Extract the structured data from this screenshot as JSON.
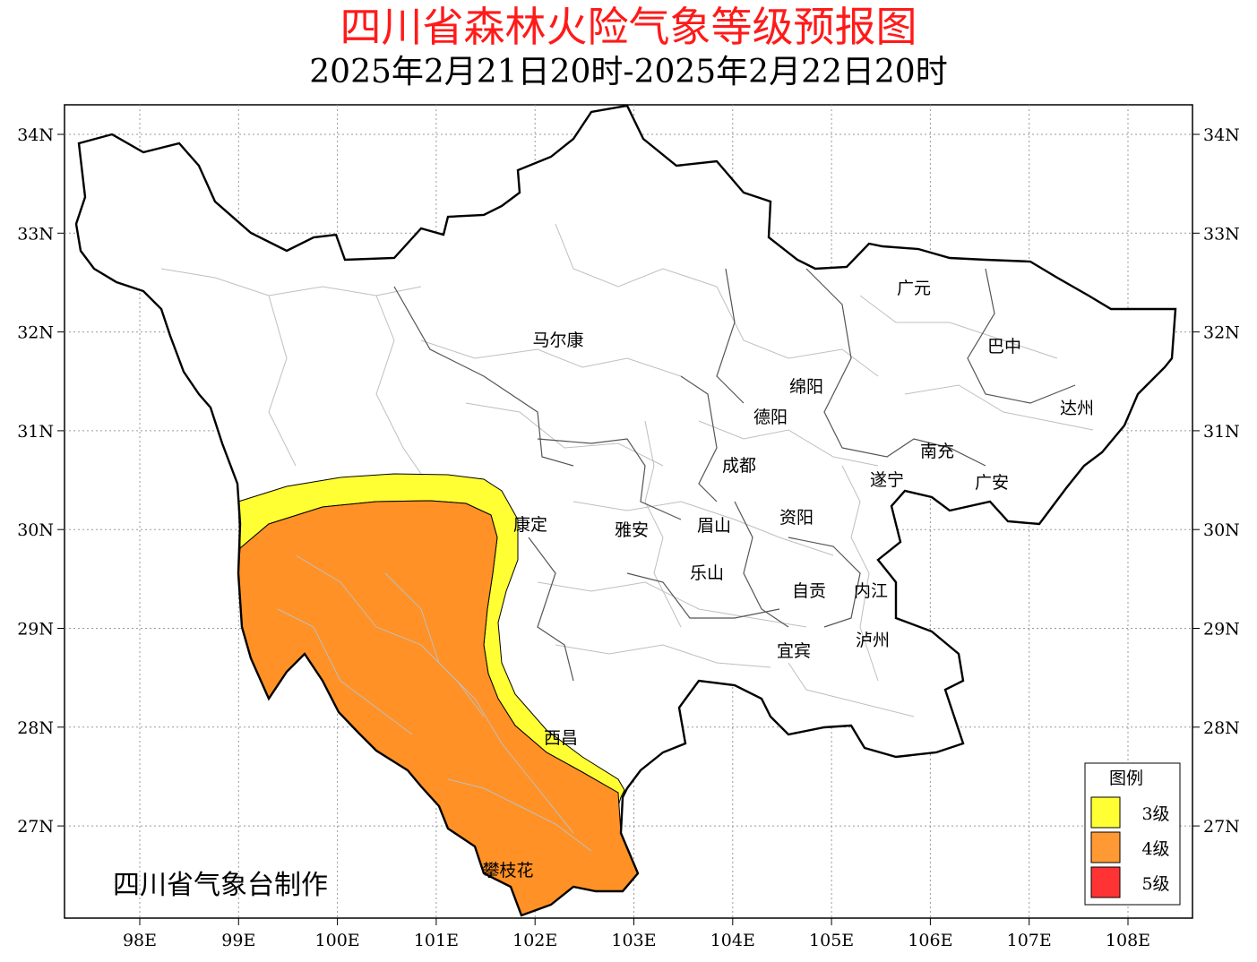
{
  "title": "四川省森林火险气象等级预报图",
  "subtitle": "2025年2月21日20时-2025年2月22日20时",
  "credit": "四川省气象台制作",
  "axes": {
    "lon_labels": [
      "98E",
      "99E",
      "100E",
      "101E",
      "102E",
      "103E",
      "104E",
      "105E",
      "106E",
      "107E",
      "108E"
    ],
    "lat_labels": [
      "34N",
      "33N",
      "32N",
      "31N",
      "30N",
      "29N",
      "28N",
      "27N"
    ]
  },
  "cities": [
    {
      "name": "广元"
    },
    {
      "name": "马尔康"
    },
    {
      "name": "巴中"
    },
    {
      "name": "绵阳"
    },
    {
      "name": "达州"
    },
    {
      "name": "德阳"
    },
    {
      "name": "南充"
    },
    {
      "name": "成都"
    },
    {
      "name": "遂宁"
    },
    {
      "name": "广安"
    },
    {
      "name": "康定"
    },
    {
      "name": "雅安"
    },
    {
      "name": "眉山"
    },
    {
      "name": "资阳"
    },
    {
      "name": "乐山"
    },
    {
      "name": "自贡"
    },
    {
      "name": "内江"
    },
    {
      "name": "泸州"
    },
    {
      "name": "宜宾"
    },
    {
      "name": "西昌"
    },
    {
      "name": "攀枝花"
    }
  ],
  "legend": {
    "title": "图例",
    "items": [
      {
        "label": "3级",
        "color": "#ffff33"
      },
      {
        "label": "4级",
        "color": "#ff9933"
      },
      {
        "label": "5级",
        "color": "#ff3333"
      }
    ]
  },
  "colors": {
    "title": "#ff1a1a",
    "level3": "#ffff33",
    "level4": "#ff9933",
    "level5": "#ff3333"
  }
}
